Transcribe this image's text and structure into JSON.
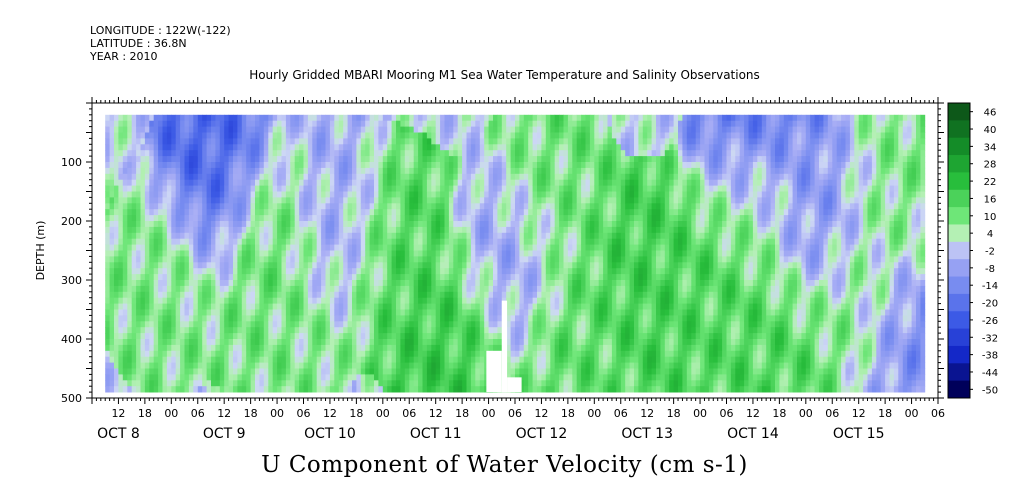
{
  "header": {
    "longitude": "LONGITUDE : 122W(-122)",
    "latitude": "LATITUDE : 36.8N",
    "year": "YEAR : 2010"
  },
  "chart_data": {
    "type": "heatmap",
    "title": "Hourly Gridded MBARI Mooring M1 Sea Water Temperature and Salinity Observations",
    "xlabel": "U Component of Water Velocity (cm s-1)",
    "ylabel": "DEPTH (m)",
    "ylim": [
      500,
      0
    ],
    "y_ticks": [
      100,
      200,
      300,
      400,
      500
    ],
    "x_hour_ticks": [
      "12",
      "18",
      "00",
      "06",
      "12",
      "18",
      "00",
      "06",
      "12",
      "18",
      "00",
      "06",
      "12",
      "18",
      "00",
      "06",
      "12",
      "18",
      "00",
      "06",
      "12",
      "18",
      "00",
      "06",
      "12",
      "18",
      "00",
      "06",
      "12",
      "18",
      "00",
      "06"
    ],
    "x_day_labels": [
      "OCT  8",
      "OCT  9",
      "OCT 10",
      "OCT 11",
      "OCT 12",
      "OCT 13",
      "OCT 14",
      "OCT 15"
    ],
    "colorbar": {
      "levels": [
        "46",
        "40",
        "34",
        "28",
        "22",
        "16",
        "10",
        "4",
        "-2",
        "-8",
        "-14",
        "-20",
        "-26",
        "-32",
        "-38",
        "-44",
        "-50"
      ],
      "min": -50,
      "max": 50
    },
    "data_depth_range_m": [
      20,
      490
    ],
    "data_time_range_hours_from_oct7_12": [
      3,
      189
    ],
    "blob_field": [
      {
        "t": 16,
        "d": 300,
        "v": 8
      },
      {
        "t": 28,
        "d": 120,
        "v": -22
      },
      {
        "t": 40,
        "d": 240,
        "v": 12
      },
      {
        "t": 44,
        "d": 400,
        "v": 8
      },
      {
        "t": 55,
        "d": 200,
        "v": -6
      },
      {
        "t": 70,
        "d": 250,
        "v": 14
      },
      {
        "t": 82,
        "d": 400,
        "v": 18
      },
      {
        "t": 94,
        "d": 270,
        "v": -8
      },
      {
        "t": 104,
        "d": 150,
        "v": 10
      },
      {
        "t": 110,
        "d": 420,
        "v": 12
      },
      {
        "t": 126,
        "d": 300,
        "v": 16
      },
      {
        "t": 140,
        "d": 320,
        "v": 14
      },
      {
        "t": 150,
        "d": 150,
        "v": 8
      },
      {
        "t": 155,
        "d": 420,
        "v": 14
      },
      {
        "t": 166,
        "d": 200,
        "v": -12
      },
      {
        "t": 172,
        "d": 350,
        "v": 10
      },
      {
        "t": 180,
        "d": 180,
        "v": 8
      },
      {
        "t": 184,
        "d": 400,
        "v": -12
      },
      {
        "t": 150,
        "d": 40,
        "v": -24
      }
    ]
  }
}
